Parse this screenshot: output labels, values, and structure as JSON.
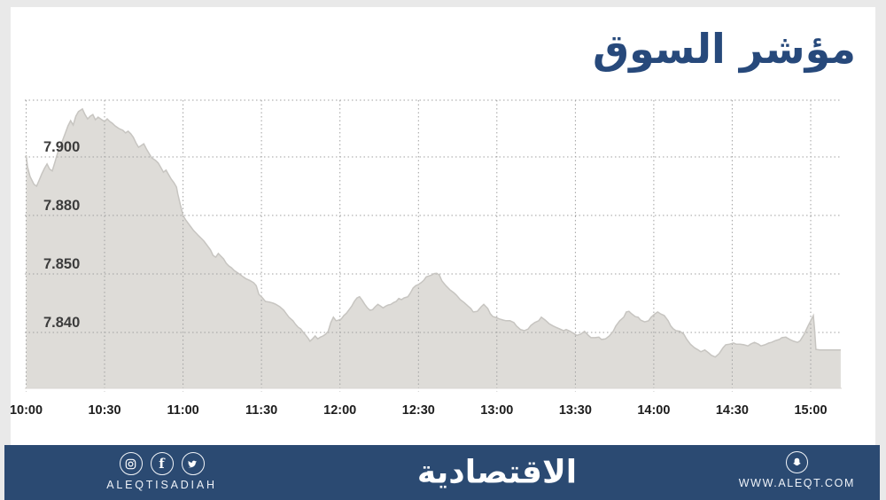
{
  "page": {
    "background": "#e9e9e9",
    "card_background": "#ffffff"
  },
  "header": {
    "title": "مؤشر السوق",
    "title_color": "#27497b"
  },
  "chart_data": {
    "type": "area",
    "title": "مؤشر السوق",
    "x_axis": {
      "ticks": [
        "10:00",
        "10:30",
        "11:00",
        "11:30",
        "12:00",
        "12:30",
        "13:00",
        "13:30",
        "14:00",
        "14:30",
        "15:00"
      ],
      "minutes_per_tick": 30,
      "start_minutes": 0,
      "end_minutes": 311.5
    },
    "y_axis": {
      "tick_labels": [
        "7.900",
        "7.880",
        "7.850",
        "7.840"
      ],
      "tick_values": [
        7.9,
        7.88,
        7.85,
        7.84
      ],
      "scale_note": "labeled levels are equally spaced on screen (non-linear value scale)",
      "grid": "dotted"
    },
    "series": [
      {
        "name": "market-index",
        "points": [
          [
            0,
            7.9006
          ],
          [
            0.5,
            7.8967
          ],
          [
            1.5,
            7.8933
          ],
          [
            3,
            7.8906
          ],
          [
            4,
            7.89
          ],
          [
            5,
            7.8921
          ],
          [
            6,
            7.8942
          ],
          [
            7,
            7.8961
          ],
          [
            8,
            7.8976
          ],
          [
            9,
            7.8958
          ],
          [
            10,
            7.8952
          ],
          [
            11,
            7.8982
          ],
          [
            12,
            7.9012
          ],
          [
            13,
            7.9036
          ],
          [
            14,
            7.9058
          ],
          [
            15,
            7.9082
          ],
          [
            16,
            7.9106
          ],
          [
            17,
            7.9124
          ],
          [
            18,
            7.9109
          ],
          [
            19,
            7.9139
          ],
          [
            20,
            7.9155
          ],
          [
            21.5,
            7.9164
          ],
          [
            22.5,
            7.9145
          ],
          [
            23.5,
            7.913
          ],
          [
            24.5,
            7.9139
          ],
          [
            25.5,
            7.9145
          ],
          [
            26.5,
            7.9127
          ],
          [
            27.5,
            7.9136
          ],
          [
            28.5,
            7.913
          ],
          [
            30,
            7.9121
          ],
          [
            31,
            7.913
          ],
          [
            32,
            7.9121
          ],
          [
            33,
            7.9115
          ],
          [
            34,
            7.9106
          ],
          [
            35.5,
            7.9097
          ],
          [
            37,
            7.9091
          ],
          [
            38,
            7.9082
          ],
          [
            39,
            7.9088
          ],
          [
            40,
            7.9079
          ],
          [
            41,
            7.9067
          ],
          [
            42,
            7.9048
          ],
          [
            43,
            7.9033
          ],
          [
            44,
            7.9039
          ],
          [
            45,
            7.9045
          ],
          [
            46,
            7.9027
          ],
          [
            47,
            7.9012
          ],
          [
            48,
            7.8997
          ],
          [
            49.5,
            7.8988
          ],
          [
            50.5,
            7.8979
          ],
          [
            51.5,
            7.8964
          ],
          [
            52.5,
            7.8948
          ],
          [
            53.5,
            7.8955
          ],
          [
            54.5,
            7.8939
          ],
          [
            55.5,
            7.8924
          ],
          [
            56.5,
            7.8912
          ],
          [
            57.5,
            7.8897
          ],
          [
            58,
            7.8873
          ],
          [
            59,
            7.8836
          ],
          [
            60,
            7.88
          ],
          [
            61,
            7.8777
          ],
          [
            62,
            7.8759
          ],
          [
            63,
            7.8741
          ],
          [
            64,
            7.8723
          ],
          [
            65,
            7.8709
          ],
          [
            66,
            7.8695
          ],
          [
            67,
            7.8682
          ],
          [
            68,
            7.8668
          ],
          [
            69,
            7.865
          ],
          [
            70.5,
            7.8623
          ],
          [
            71.5,
            7.8595
          ],
          [
            72.5,
            7.8586
          ],
          [
            73.5,
            7.8605
          ],
          [
            74.5,
            7.8591
          ],
          [
            75.5,
            7.8577
          ],
          [
            76.5,
            7.8555
          ],
          [
            77.5,
            7.8541
          ],
          [
            78.5,
            7.8532
          ],
          [
            79.5,
            7.8518
          ],
          [
            80.5,
            7.8509
          ],
          [
            81.5,
            7.85
          ],
          [
            83,
            7.8495
          ],
          [
            84,
            7.8492
          ],
          [
            85.5,
            7.8489
          ],
          [
            87,
            7.8485
          ],
          [
            88,
            7.848
          ],
          [
            89,
            7.8465
          ],
          [
            90,
            7.8461
          ],
          [
            91.5,
            7.8453
          ],
          [
            93,
            7.8452
          ],
          [
            94.5,
            7.845
          ],
          [
            95.5,
            7.8448
          ],
          [
            97,
            7.8444
          ],
          [
            98.5,
            7.8438
          ],
          [
            99.5,
            7.8432
          ],
          [
            100.5,
            7.8426
          ],
          [
            102,
            7.842
          ],
          [
            103,
            7.8414
          ],
          [
            104,
            7.8409
          ],
          [
            105,
            7.8406
          ],
          [
            106,
            7.84
          ],
          [
            107,
            7.8395
          ],
          [
            108,
            7.8389
          ],
          [
            108.5,
            7.8385
          ],
          [
            109.5,
            7.8389
          ],
          [
            110.5,
            7.8394
          ],
          [
            111.5,
            7.8389
          ],
          [
            112.5,
            7.8392
          ],
          [
            113.5,
            7.8394
          ],
          [
            114.5,
            7.8397
          ],
          [
            115.5,
            7.8402
          ],
          [
            116.5,
            7.8417
          ],
          [
            117.5,
            7.8426
          ],
          [
            118.5,
            7.842
          ],
          [
            119.5,
            7.8421
          ],
          [
            120.5,
            7.8423
          ],
          [
            121.5,
            7.8429
          ],
          [
            122.5,
            7.8433
          ],
          [
            123.5,
            7.8439
          ],
          [
            124.5,
            7.8445
          ],
          [
            125.5,
            7.8453
          ],
          [
            126.5,
            7.8459
          ],
          [
            127.5,
            7.8461
          ],
          [
            128.5,
            7.8455
          ],
          [
            129.5,
            7.8448
          ],
          [
            130.5,
            7.8442
          ],
          [
            131.5,
            7.8438
          ],
          [
            132.5,
            7.8439
          ],
          [
            133.5,
            7.8444
          ],
          [
            134.5,
            7.8448
          ],
          [
            135.5,
            7.8445
          ],
          [
            136.5,
            7.8442
          ],
          [
            137.5,
            7.8445
          ],
          [
            138.5,
            7.8447
          ],
          [
            139.5,
            7.8448
          ],
          [
            140.5,
            7.8451
          ],
          [
            141.5,
            7.8453
          ],
          [
            142.5,
            7.8458
          ],
          [
            143.5,
            7.8456
          ],
          [
            144.5,
            7.8459
          ],
          [
            146,
            7.8461
          ],
          [
            147,
            7.8468
          ],
          [
            148,
            7.8476
          ],
          [
            149,
            7.848
          ],
          [
            150,
            7.8482
          ],
          [
            151,
            7.8485
          ],
          [
            152,
            7.8489
          ],
          [
            153,
            7.8495
          ],
          [
            155,
            7.8498
          ],
          [
            156,
            7.8502
          ],
          [
            157,
            7.8503
          ],
          [
            158,
            7.8498
          ],
          [
            159,
            7.8488
          ],
          [
            160.5,
            7.848
          ],
          [
            162,
            7.8473
          ],
          [
            163.5,
            7.8468
          ],
          [
            164.5,
            7.8464
          ],
          [
            166,
            7.8456
          ],
          [
            167.5,
            7.8451
          ],
          [
            169,
            7.8445
          ],
          [
            170,
            7.8441
          ],
          [
            171,
            7.8435
          ],
          [
            172.5,
            7.8436
          ],
          [
            174,
            7.8444
          ],
          [
            175,
            7.8448
          ],
          [
            176.5,
            7.8441
          ],
          [
            177.5,
            7.8432
          ],
          [
            178.5,
            7.8427
          ],
          [
            179.5,
            7.8426
          ],
          [
            181,
            7.8423
          ],
          [
            182.5,
            7.8421
          ],
          [
            183.5,
            7.842
          ],
          [
            185,
            7.842
          ],
          [
            186.5,
            7.8417
          ],
          [
            187.5,
            7.8411
          ],
          [
            189,
            7.8405
          ],
          [
            190.5,
            7.8403
          ],
          [
            192,
            7.8406
          ],
          [
            193,
            7.8412
          ],
          [
            194.5,
            7.8417
          ],
          [
            196,
            7.842
          ],
          [
            197,
            7.8426
          ],
          [
            198.5,
            7.8421
          ],
          [
            200,
            7.8415
          ],
          [
            201.5,
            7.8411
          ],
          [
            202.5,
            7.8409
          ],
          [
            204,
            7.8406
          ],
          [
            205.5,
            7.8403
          ],
          [
            206.5,
            7.8405
          ],
          [
            208,
            7.8402
          ],
          [
            209.5,
            7.8398
          ],
          [
            210.5,
            7.8395
          ],
          [
            212,
            7.8397
          ],
          [
            213.5,
            7.8402
          ],
          [
            215,
            7.8395
          ],
          [
            216,
            7.8391
          ],
          [
            217.5,
            7.8391
          ],
          [
            219,
            7.8392
          ],
          [
            220,
            7.8388
          ],
          [
            221.5,
            7.8389
          ],
          [
            223,
            7.8394
          ],
          [
            224.5,
            7.8402
          ],
          [
            225.5,
            7.8411
          ],
          [
            227,
            7.842
          ],
          [
            228.5,
            7.8426
          ],
          [
            229.5,
            7.8435
          ],
          [
            230.5,
            7.8436
          ],
          [
            231.5,
            7.8432
          ],
          [
            233,
            7.8427
          ],
          [
            234,
            7.8426
          ],
          [
            235,
            7.8421
          ],
          [
            236.5,
            7.8418
          ],
          [
            238,
            7.842
          ],
          [
            239,
            7.8426
          ],
          [
            240.5,
            7.8432
          ],
          [
            241.5,
            7.8435
          ],
          [
            242.5,
            7.8432
          ],
          [
            244,
            7.8429
          ],
          [
            245.5,
            7.842
          ],
          [
            246.5,
            7.8411
          ],
          [
            247.5,
            7.8406
          ],
          [
            248.5,
            7.8403
          ],
          [
            250,
            7.8402
          ],
          [
            251.5,
            7.8397
          ],
          [
            252.5,
            7.8389
          ],
          [
            254,
            7.838
          ],
          [
            255.5,
            7.8374
          ],
          [
            257,
            7.837
          ],
          [
            258,
            7.8367
          ],
          [
            259.5,
            7.837
          ],
          [
            261,
            7.8365
          ],
          [
            262,
            7.8361
          ],
          [
            263.5,
            7.8358
          ],
          [
            265,
            7.8364
          ],
          [
            266.5,
            7.8374
          ],
          [
            267.5,
            7.8379
          ],
          [
            269,
            7.838
          ],
          [
            270.5,
            7.8382
          ],
          [
            271.5,
            7.838
          ],
          [
            273,
            7.838
          ],
          [
            274.5,
            7.8379
          ],
          [
            276,
            7.8377
          ],
          [
            277,
            7.838
          ],
          [
            278.5,
            7.8383
          ],
          [
            280,
            7.838
          ],
          [
            281,
            7.8377
          ],
          [
            282.5,
            7.8379
          ],
          [
            284,
            7.8382
          ],
          [
            285,
            7.8383
          ],
          [
            286.5,
            7.8386
          ],
          [
            288,
            7.8388
          ],
          [
            289,
            7.8391
          ],
          [
            290.5,
            7.8392
          ],
          [
            292,
            7.8388
          ],
          [
            293.5,
            7.8385
          ],
          [
            295,
            7.8383
          ],
          [
            296,
            7.8386
          ],
          [
            297.5,
            7.8397
          ],
          [
            299,
            7.8411
          ],
          [
            300,
            7.842
          ],
          [
            301,
            7.8429
          ],
          [
            301.5,
            7.8405
          ],
          [
            302,
            7.8371
          ],
          [
            303.5,
            7.837
          ],
          [
            306.5,
            7.837
          ],
          [
            311.5,
            7.837
          ]
        ]
      }
    ],
    "styles": {
      "area_fill": "#dedcd8",
      "area_line": "#c7c5c1",
      "grid_color": "#a0a0a0",
      "y_label_color": "#3c3c3c",
      "x_label_color": "#1d1d1d"
    },
    "legend": "none"
  },
  "footer": {
    "background": "#2b4a72",
    "left": {
      "icons": [
        "instagram",
        "facebook",
        "twitter"
      ],
      "handle": "ALEQTISADIAH"
    },
    "center": {
      "logo": "الاقتصادية"
    },
    "right": {
      "icon": "snapchat",
      "url": "WWW.ALEQT.COM"
    }
  }
}
